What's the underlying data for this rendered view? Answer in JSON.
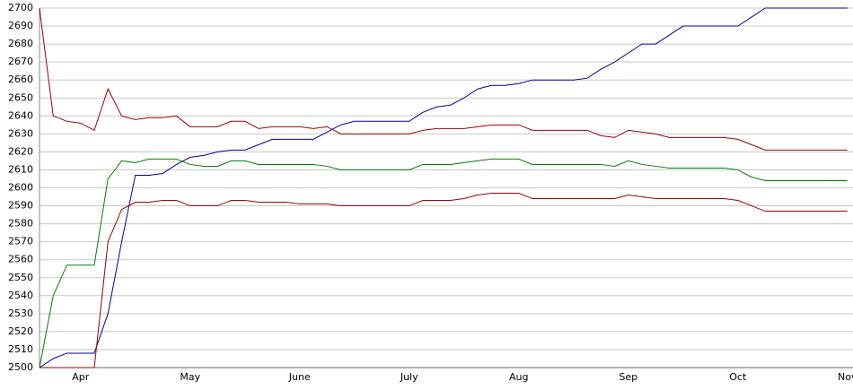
{
  "chart_data": {
    "type": "line",
    "categories": [
      null,
      null,
      null,
      "Apr",
      null,
      null,
      null,
      null,
      null,
      null,
      null,
      "May",
      null,
      null,
      null,
      null,
      null,
      null,
      null,
      "June",
      null,
      null,
      null,
      null,
      null,
      null,
      null,
      "July",
      null,
      null,
      null,
      null,
      null,
      null,
      null,
      "Aug",
      null,
      null,
      null,
      null,
      null,
      null,
      null,
      "Sep",
      null,
      null,
      null,
      null,
      null,
      null,
      null,
      "Oct",
      null,
      null,
      null,
      null,
      null,
      null,
      null,
      "Nov"
    ],
    "series": [
      {
        "color": "#0000a0",
        "values": [
          2500,
          2505,
          2508,
          2508,
          2508,
          2530,
          2570,
          2607,
          2607,
          2608,
          2613,
          2617,
          2618,
          2620,
          2621,
          2621,
          2624,
          2627,
          2627,
          2627,
          2627,
          2631,
          2635,
          2637,
          2637,
          2637,
          2637,
          2637,
          2642,
          2645,
          2646,
          2650,
          2655,
          2657,
          2657,
          2658,
          2660,
          2660,
          2660,
          2660,
          2661,
          2666,
          2670,
          2675,
          2680,
          2680,
          2685,
          2690,
          2690,
          2690,
          2690,
          2690,
          2695,
          2700,
          2700,
          2700,
          2700,
          2700,
          2700,
          2700
        ]
      },
      {
        "color": "#a00000",
        "values": [
          2700,
          2640,
          2637,
          2636,
          2632,
          2655,
          2640,
          2638,
          2639,
          2639,
          2640,
          2634,
          2634,
          2634,
          2637,
          2637,
          2633,
          2634,
          2634,
          2634,
          2633,
          2634,
          2630,
          2630,
          2630,
          2630,
          2630,
          2630,
          2632,
          2633,
          2633,
          2633,
          2634,
          2635,
          2635,
          2635,
          2632,
          2632,
          2632,
          2632,
          2632,
          2629,
          2628,
          2632,
          2631,
          2630,
          2628,
          2628,
          2628,
          2628,
          2628,
          2627,
          2624,
          2621,
          2621,
          2621,
          2621,
          2621,
          2621,
          2621
        ]
      },
      {
        "color": "#008000",
        "values": [
          2500,
          2540,
          2557,
          2557,
          2557,
          2605,
          2615,
          2614,
          2616,
          2616,
          2616,
          2613,
          2612,
          2612,
          2615,
          2615,
          2613,
          2613,
          2613,
          2613,
          2613,
          2612,
          2610,
          2610,
          2610,
          2610,
          2610,
          2610,
          2613,
          2613,
          2613,
          2614,
          2615,
          2616,
          2616,
          2616,
          2613,
          2613,
          2613,
          2613,
          2613,
          2613,
          2612,
          2615,
          2613,
          2612,
          2611,
          2611,
          2611,
          2611,
          2611,
          2610,
          2606,
          2604,
          2604,
          2604,
          2604,
          2604,
          2604,
          2604
        ]
      },
      {
        "color": "#a00000",
        "values": [
          2500,
          2500,
          2500,
          2500,
          2500,
          2570,
          2588,
          2592,
          2592,
          2593,
          2593,
          2590,
          2590,
          2590,
          2593,
          2593,
          2592,
          2592,
          2592,
          2591,
          2591,
          2591,
          2590,
          2590,
          2590,
          2590,
          2590,
          2590,
          2593,
          2593,
          2593,
          2594,
          2596,
          2597,
          2597,
          2597,
          2594,
          2594,
          2594,
          2594,
          2594,
          2594,
          2594,
          2596,
          2595,
          2594,
          2594,
          2594,
          2594,
          2594,
          2594,
          2593,
          2590,
          2587,
          2587,
          2587,
          2587,
          2587,
          2587,
          2587
        ]
      }
    ],
    "ylim": [
      2500,
      2700
    ],
    "yticks": [
      2500,
      2510,
      2520,
      2530,
      2540,
      2550,
      2560,
      2570,
      2580,
      2590,
      2600,
      2610,
      2620,
      2630,
      2640,
      2650,
      2660,
      2670,
      2680,
      2690,
      2700
    ],
    "grid": true
  }
}
